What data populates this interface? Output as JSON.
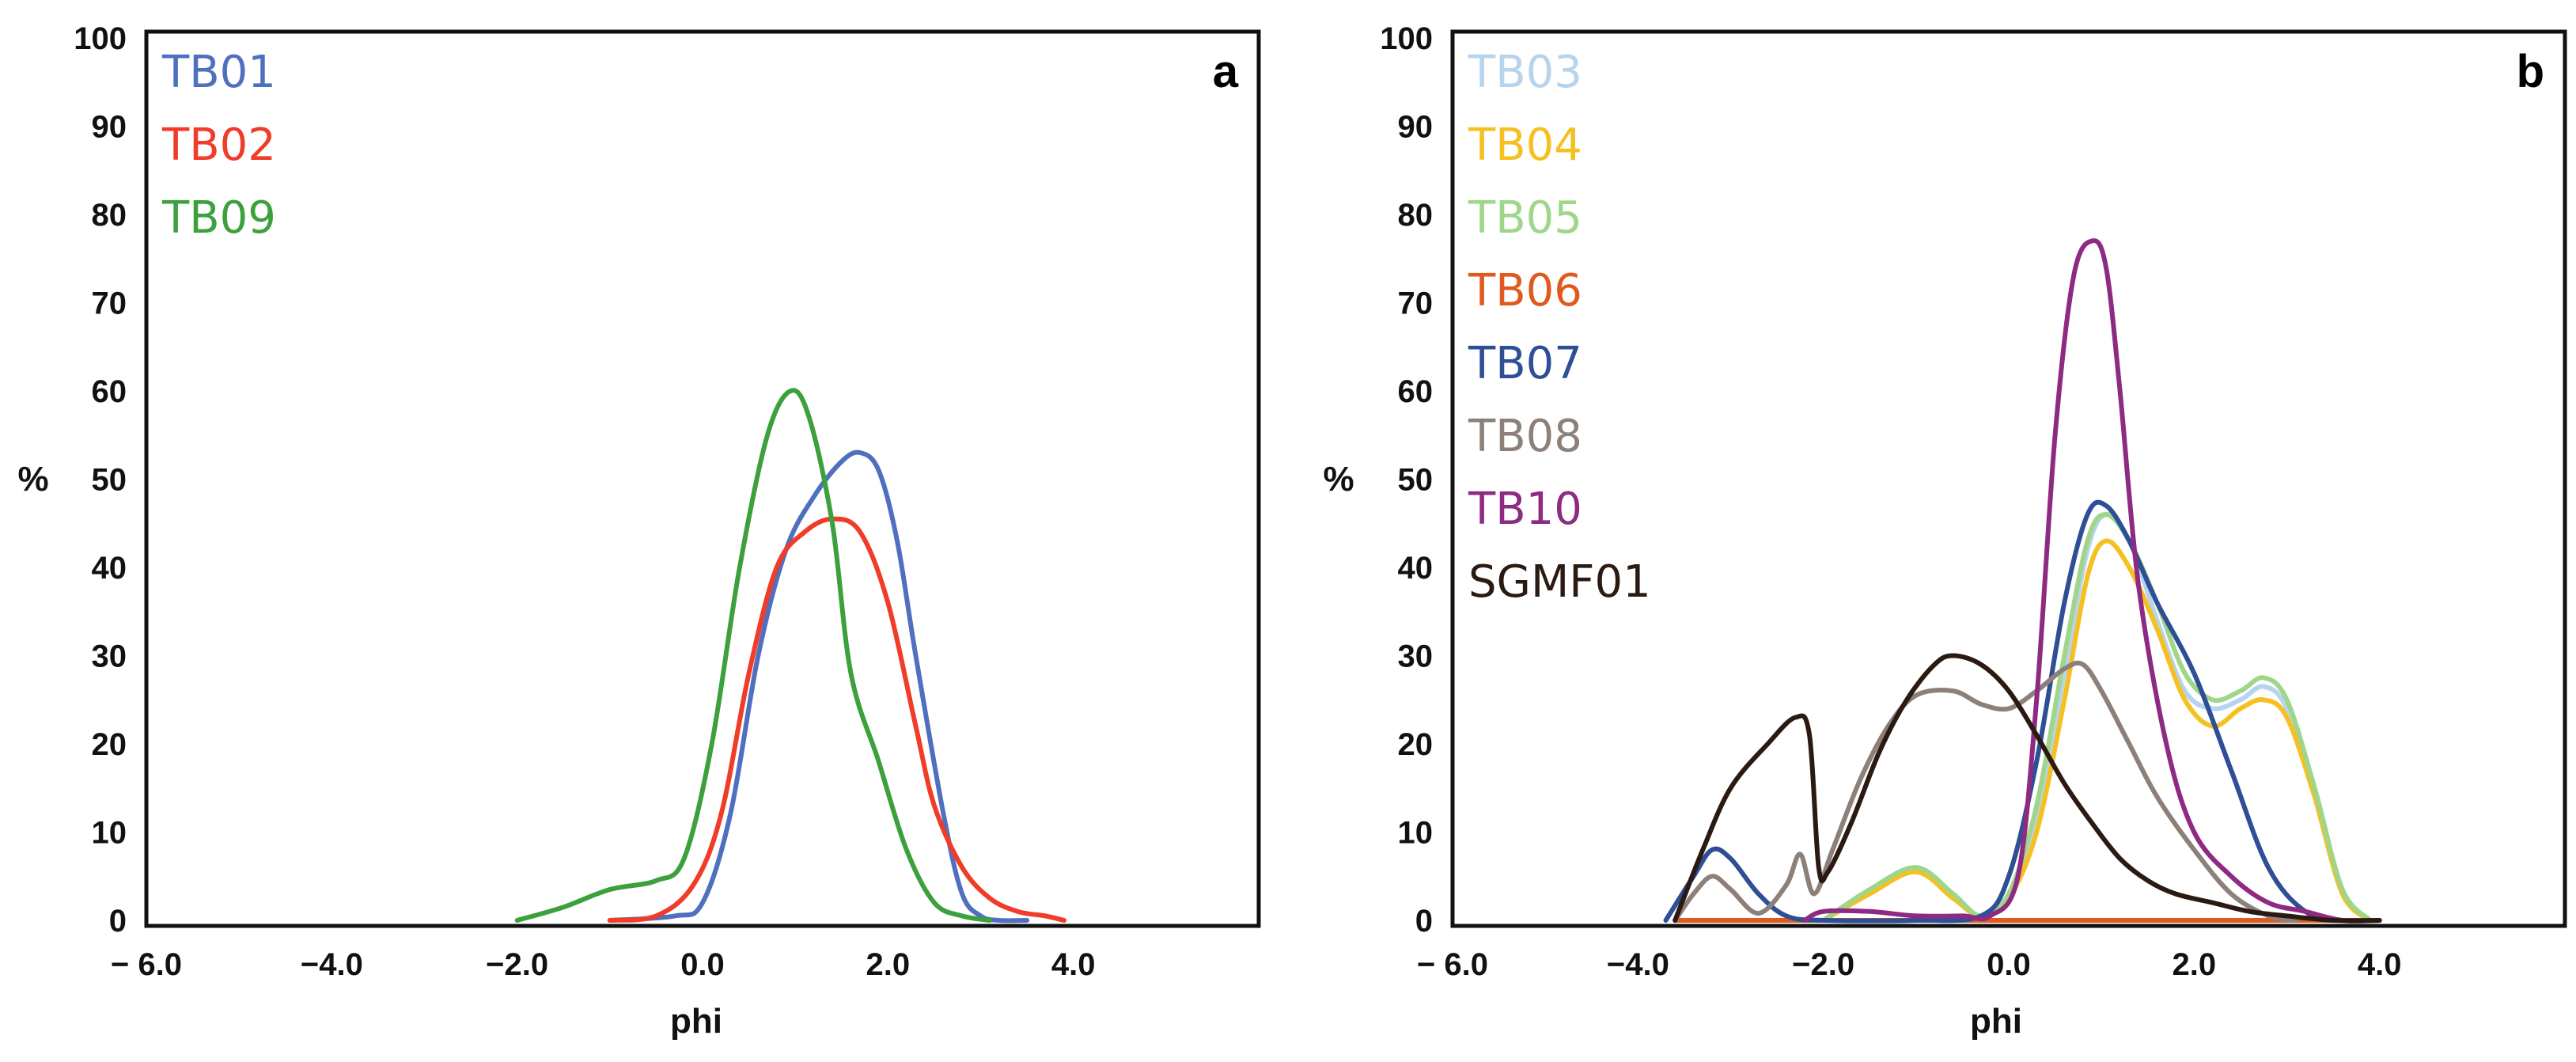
{
  "chart_data": [
    {
      "type": "line",
      "panel": "a",
      "xlabel": "phi",
      "ylabel": "%",
      "xlim": [
        -6,
        6
      ],
      "ylim": [
        0,
        100
      ],
      "grid": false,
      "legend_position": "top-left",
      "xtick_labels": [
        "− 6.0",
        "−4.0",
        "−2.0",
        "0.0",
        "2.0",
        "4.0"
      ],
      "xtick_values": [
        -6,
        -4,
        -2,
        0,
        2,
        4
      ],
      "ytick_labels": [
        "0",
        "10",
        "20",
        "30",
        "40",
        "50",
        "60",
        "70",
        "80",
        "90",
        "100"
      ],
      "ytick_values": [
        0,
        10,
        20,
        30,
        40,
        50,
        60,
        70,
        80,
        90,
        100
      ],
      "series": [
        {
          "name": "TB01",
          "color": "#4f6fbf",
          "x": [
            -1.0,
            -0.3,
            0.0,
            0.3,
            0.6,
            0.9,
            1.2,
            1.5,
            1.7,
            1.9,
            2.1,
            2.3,
            2.6,
            2.8,
            3.0,
            3.2,
            3.5
          ],
          "y": [
            0,
            0.5,
            2,
            12,
            30,
            42,
            48,
            52,
            53,
            51,
            43,
            30,
            12,
            3,
            0.5,
            0,
            0
          ]
        },
        {
          "name": "TB02",
          "color": "#f03c28",
          "x": [
            -1.0,
            -0.5,
            -0.1,
            0.2,
            0.5,
            0.8,
            1.1,
            1.4,
            1.7,
            2.0,
            2.3,
            2.5,
            2.8,
            3.1,
            3.4,
            3.7,
            3.9
          ],
          "y": [
            0,
            0.5,
            4,
            12,
            28,
            40,
            44,
            45.5,
            44,
            36,
            22,
            13,
            6,
            2.5,
            1,
            0.5,
            0
          ]
        },
        {
          "name": "TB09",
          "color": "#3ca03c",
          "x": [
            -2.0,
            -1.5,
            -1.0,
            -0.5,
            -0.2,
            0.1,
            0.4,
            0.7,
            0.95,
            1.15,
            1.4,
            1.6,
            1.9,
            2.2,
            2.5,
            2.8,
            3.1
          ],
          "y": [
            0,
            1.5,
            3.5,
            4.5,
            7,
            20,
            40,
            55,
            60,
            57,
            45,
            28,
            18,
            8,
            2,
            0.5,
            0
          ]
        }
      ]
    },
    {
      "type": "line",
      "panel": "b",
      "xlabel": "phi",
      "ylabel": "%",
      "xlim": [
        -6,
        6
      ],
      "ylim": [
        0,
        100
      ],
      "grid": false,
      "legend_position": "top-left",
      "xtick_labels": [
        "− 6.0",
        "−4.0",
        "−2.0",
        "0.0",
        "2.0",
        "4.0"
      ],
      "xtick_values": [
        -6,
        -4,
        -2,
        0,
        2,
        4
      ],
      "ytick_labels": [
        "0",
        "10",
        "20",
        "30",
        "40",
        "50",
        "60",
        "70",
        "80",
        "90",
        "100"
      ],
      "ytick_values": [
        0,
        10,
        20,
        30,
        40,
        50,
        60,
        70,
        80,
        90,
        100
      ],
      "series": [
        {
          "name": "TB03",
          "color": "#b6d4ee",
          "x": [
            -2.0,
            -1.5,
            -1.0,
            -0.6,
            -0.3,
            0.0,
            0.3,
            0.6,
            0.85,
            1.05,
            1.3,
            1.6,
            1.9,
            2.2,
            2.5,
            2.75,
            3.0,
            3.3,
            3.6,
            3.9
          ],
          "y": [
            0,
            3,
            5.5,
            2.5,
            0.5,
            3,
            12,
            28,
            42,
            46,
            43,
            34,
            26,
            24,
            25,
            26.5,
            24,
            14,
            3,
            0
          ]
        },
        {
          "name": "TB04",
          "color": "#f5c021",
          "x": [
            -2.0,
            -1.5,
            -1.0,
            -0.6,
            -0.3,
            0.0,
            0.3,
            0.6,
            0.85,
            1.05,
            1.3,
            1.6,
            1.9,
            2.2,
            2.5,
            2.75,
            3.0,
            3.3,
            3.6,
            3.9
          ],
          "y": [
            0,
            3,
            5.5,
            2.5,
            0.5,
            2.5,
            10,
            25,
            39,
            43,
            40,
            33,
            25,
            22,
            24,
            25,
            23,
            14,
            3,
            0
          ]
        },
        {
          "name": "TB05",
          "color": "#9fd68a",
          "x": [
            -2.0,
            -1.5,
            -1.0,
            -0.6,
            -0.3,
            0.0,
            0.3,
            0.6,
            0.85,
            1.05,
            1.3,
            1.6,
            1.9,
            2.2,
            2.5,
            2.75,
            3.0,
            3.3,
            3.6,
            3.9
          ],
          "y": [
            0,
            3.5,
            6,
            3,
            0.5,
            3,
            13,
            30,
            43,
            46,
            43,
            36,
            28,
            25,
            26,
            27.5,
            25,
            15,
            3.5,
            0
          ]
        },
        {
          "name": "TB06",
          "color": "#e05a1e",
          "x": [
            -3.6,
            -2.0,
            -1.0,
            -0.3,
            0.3,
            1.0,
            2.0,
            3.0,
            4.0
          ],
          "y": [
            0,
            0,
            0,
            0,
            0,
            0,
            0,
            0,
            0
          ]
        },
        {
          "name": "TB07",
          "color": "#2e4f96",
          "x": [
            -3.7,
            -3.4,
            -3.2,
            -3.0,
            -2.7,
            -2.4,
            -2.0,
            -1.0,
            -0.3,
            0.0,
            0.3,
            0.6,
            0.85,
            1.05,
            1.3,
            1.6,
            2.0,
            2.4,
            2.8,
            3.2,
            3.6,
            4.0
          ],
          "y": [
            0,
            5,
            8,
            7,
            3,
            0.5,
            0,
            0,
            0.5,
            5,
            18,
            36,
            46,
            47,
            43,
            36,
            28,
            17,
            6,
            1,
            0,
            0
          ]
        },
        {
          "name": "TB08",
          "color": "#8c8079",
          "x": [
            -3.6,
            -3.4,
            -3.2,
            -3.0,
            -2.7,
            -2.4,
            -2.25,
            -2.1,
            -1.9,
            -1.6,
            -1.3,
            -1.0,
            -0.6,
            -0.3,
            0.0,
            0.3,
            0.6,
            0.8,
            1.0,
            1.3,
            1.6,
            2.0,
            2.4,
            2.8,
            3.1
          ],
          "y": [
            0,
            3,
            5,
            3.5,
            0.8,
            4,
            7.5,
            3,
            8,
            16,
            22,
            25.5,
            26,
            24.5,
            24,
            26,
            28.5,
            29,
            26,
            20,
            14,
            8,
            3,
            0.5,
            0
          ]
        },
        {
          "name": "TB10",
          "color": "#8e2a82",
          "x": [
            -2.2,
            -2.0,
            -1.5,
            -1.0,
            -0.5,
            -0.2,
            0.1,
            0.3,
            0.5,
            0.7,
            0.9,
            1.05,
            1.2,
            1.4,
            1.7,
            2.0,
            2.4,
            2.8,
            3.2,
            3.6,
            4.0
          ],
          "y": [
            0,
            1,
            1,
            0.5,
            0.5,
            0.5,
            5,
            25,
            55,
            73,
            77,
            74,
            60,
            38,
            20,
            10,
            5,
            2,
            1,
            0,
            0
          ]
        },
        {
          "name": "SGMF01",
          "color": "#2a1a12",
          "x": [
            -3.6,
            -3.3,
            -3.0,
            -2.6,
            -2.3,
            -2.15,
            -2.05,
            -1.95,
            -1.7,
            -1.4,
            -1.1,
            -0.8,
            -0.6,
            -0.3,
            0.0,
            0.3,
            0.6,
            0.9,
            1.2,
            1.5,
            1.8,
            2.2,
            2.6,
            3.0,
            3.5,
            4.0
          ],
          "y": [
            0,
            8,
            15,
            20,
            23,
            21,
            6,
            5.5,
            11,
            19,
            25,
            29,
            30,
            29,
            26,
            21,
            15.5,
            11,
            7,
            4.5,
            3,
            2,
            1,
            0.5,
            0,
            0
          ]
        }
      ]
    }
  ]
}
